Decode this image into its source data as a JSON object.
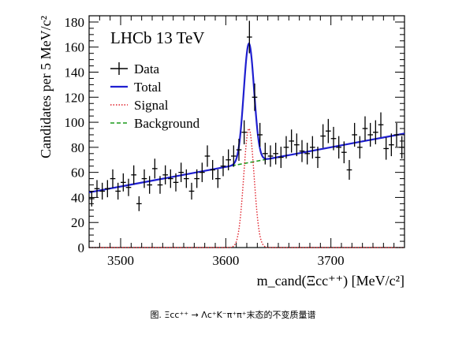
{
  "caption": "图. Ξcc⁺⁺ → Λc⁺K⁻π⁺π⁺末态的不变质量谱",
  "chart_data": {
    "type": "line",
    "annotation": "LHCb 13 TeV",
    "xlabel": "m_cand(Ξcc⁺⁺) [MeV/c²]",
    "ylabel": "Candidates per 5 MeV/c²",
    "xlim": [
      3470,
      3770
    ],
    "ylim": [
      0,
      185
    ],
    "x_ticks": [
      3500,
      3600,
      3700
    ],
    "y_ticks": [
      0,
      20,
      40,
      60,
      80,
      100,
      120,
      140,
      160,
      180
    ],
    "grid": false,
    "legend": {
      "placement": "top-left",
      "entries": [
        {
          "label": "Data",
          "style": "errorbar",
          "color": "#000000"
        },
        {
          "label": "Total",
          "style": "solid",
          "color": "#1f1fd0"
        },
        {
          "label": "Signal",
          "style": "dotted",
          "color": "#e0202a"
        },
        {
          "label": "Background",
          "style": "dashed",
          "color": "#1a9a1a"
        }
      ]
    },
    "data_points": {
      "x": [
        3472.5,
        3477.5,
        3482.5,
        3487.5,
        3492.5,
        3497.5,
        3502.5,
        3507.5,
        3512.5,
        3517.5,
        3522.5,
        3527.5,
        3532.5,
        3537.5,
        3542.5,
        3547.5,
        3552.5,
        3557.5,
        3562.5,
        3567.5,
        3572.5,
        3577.5,
        3582.5,
        3587.5,
        3592.5,
        3597.5,
        3602.5,
        3607.5,
        3612.5,
        3617.5,
        3622.5,
        3627.5,
        3632.5,
        3637.5,
        3642.5,
        3647.5,
        3652.5,
        3657.5,
        3662.5,
        3667.5,
        3672.5,
        3677.5,
        3682.5,
        3687.5,
        3692.5,
        3697.5,
        3702.5,
        3707.5,
        3712.5,
        3717.5,
        3722.5,
        3727.5,
        3732.5,
        3737.5,
        3742.5,
        3747.5,
        3752.5,
        3757.5,
        3762.5,
        3767.5
      ],
      "y": [
        39,
        47,
        45,
        47,
        55,
        45,
        52,
        48,
        58,
        35,
        55,
        50,
        63,
        50,
        58,
        55,
        52,
        60,
        55,
        45,
        55,
        60,
        73,
        62,
        55,
        65,
        70,
        73,
        78,
        92,
        168,
        120,
        90,
        75,
        73,
        75,
        72,
        80,
        85,
        82,
        77,
        75,
        80,
        72,
        89,
        93,
        87,
        80,
        76,
        62,
        90,
        80,
        95,
        90,
        92,
        98,
        79,
        82,
        90,
        80
      ],
      "yerr": 7
    },
    "series": [
      {
        "name": "Total",
        "color": "#1f1fd0",
        "style": "solid"
      },
      {
        "name": "Signal",
        "color": "#e0202a",
        "style": "dotted"
      },
      {
        "name": "Background",
        "color": "#1a9a1a",
        "style": "dashed"
      }
    ],
    "model": {
      "background_line": {
        "x": [
          3470,
          3770
        ],
        "y": [
          44,
          91
        ]
      },
      "signal_peak": {
        "mean": 3622,
        "sigma": 4.9,
        "amplitude": 95
      }
    }
  }
}
